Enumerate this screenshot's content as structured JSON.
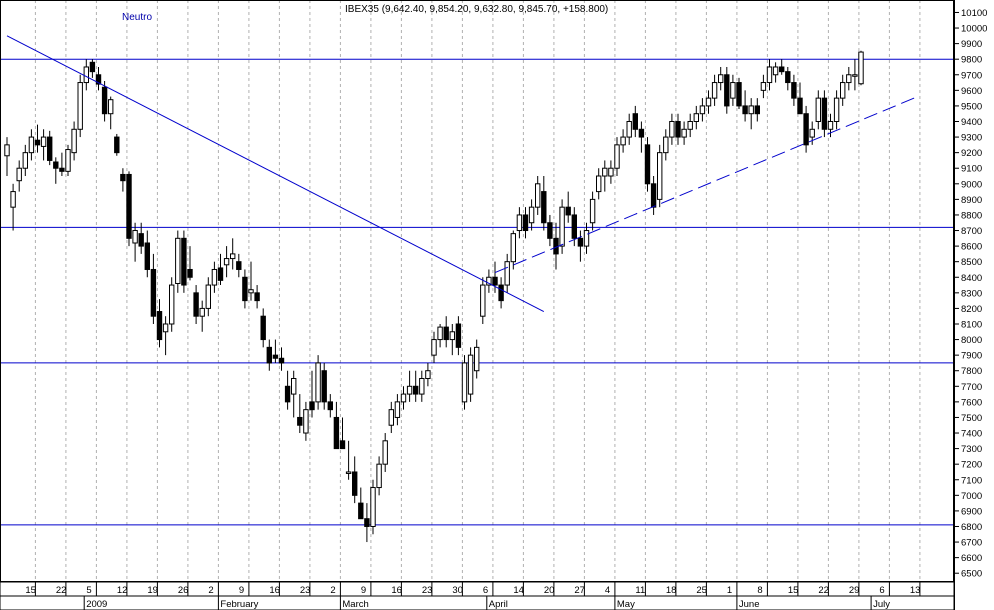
{
  "header": {
    "signal_label": "Neutro",
    "quote_label": "IBEX35 (9,642.40, 9,854.20, 9,632.80, 9,845.70, +158.800)"
  },
  "colors": {
    "background": "#ffffff",
    "frame": "#000000",
    "trendline": "#0000cc",
    "grid": "#b0b0b0",
    "candle": "#000000",
    "signal_text": "#0000aa"
  },
  "chart_data": {
    "type": "candlestick",
    "title": "IBEX35 (9,642.40, 9,854.20, 9,632.80, 9,845.70, +158.800)",
    "ylim": [
      6450,
      10180
    ],
    "y_ticks": [
      6500,
      6600,
      6700,
      6800,
      6900,
      7000,
      7100,
      7200,
      7300,
      7400,
      7500,
      7600,
      7700,
      7800,
      7900,
      8000,
      8100,
      8200,
      8300,
      8400,
      8500,
      8600,
      8700,
      8800,
      8900,
      9000,
      9100,
      9200,
      9300,
      9400,
      9500,
      9600,
      9700,
      9800,
      9900,
      10000,
      10100
    ],
    "x_day_labels": [
      {
        "slot": 4,
        "text": "15"
      },
      {
        "slot": 9,
        "text": "22"
      },
      {
        "slot": 14,
        "text": "5"
      },
      {
        "slot": 19,
        "text": "12"
      },
      {
        "slot": 24,
        "text": "19"
      },
      {
        "slot": 29,
        "text": "26"
      },
      {
        "slot": 34,
        "text": "2"
      },
      {
        "slot": 39,
        "text": "9"
      },
      {
        "slot": 44,
        "text": "16"
      },
      {
        "slot": 49,
        "text": "23"
      },
      {
        "slot": 54,
        "text": "2"
      },
      {
        "slot": 59,
        "text": "9"
      },
      {
        "slot": 64,
        "text": "16"
      },
      {
        "slot": 69,
        "text": "23"
      },
      {
        "slot": 74,
        "text": "30"
      },
      {
        "slot": 79,
        "text": "6"
      },
      {
        "slot": 84,
        "text": "14"
      },
      {
        "slot": 89,
        "text": "20"
      },
      {
        "slot": 94,
        "text": "27"
      },
      {
        "slot": 99,
        "text": "4"
      },
      {
        "slot": 104,
        "text": "11"
      },
      {
        "slot": 109,
        "text": "18"
      },
      {
        "slot": 114,
        "text": "25"
      },
      {
        "slot": 119,
        "text": "1"
      },
      {
        "slot": 124,
        "text": "8"
      },
      {
        "slot": 129,
        "text": "15"
      },
      {
        "slot": 134,
        "text": "22"
      },
      {
        "slot": 139,
        "text": "29"
      },
      {
        "slot": 144,
        "text": "6"
      },
      {
        "slot": 149,
        "text": "13"
      }
    ],
    "x_month_labels": [
      {
        "slot": 12,
        "text": "2009"
      },
      {
        "slot": 34,
        "text": "February"
      },
      {
        "slot": 54,
        "text": "March"
      },
      {
        "slot": 78,
        "text": "April"
      },
      {
        "slot": 99,
        "text": "May"
      },
      {
        "slot": 119,
        "text": "June"
      },
      {
        "slot": 141,
        "text": "July"
      }
    ],
    "candles": [
      [
        9180,
        9300,
        9050,
        9250
      ],
      [
        8850,
        9000,
        8700,
        8950
      ],
      [
        9020,
        9150,
        8950,
        9100
      ],
      [
        9100,
        9250,
        9050,
        9200
      ],
      [
        9200,
        9350,
        9150,
        9300
      ],
      [
        9280,
        9380,
        9200,
        9250
      ],
      [
        9240,
        9350,
        9150,
        9300
      ],
      [
        9300,
        9340,
        9120,
        9150
      ],
      [
        9140,
        9170,
        9000,
        9100
      ],
      [
        9100,
        9200,
        9050,
        9080
      ],
      [
        9080,
        9250,
        9050,
        9220
      ],
      [
        9200,
        9400,
        9150,
        9350
      ],
      [
        9350,
        9700,
        9300,
        9650
      ],
      [
        9650,
        9800,
        9600,
        9750
      ],
      [
        9780,
        9800,
        9680,
        9720
      ],
      [
        9700,
        9750,
        9600,
        9640
      ],
      [
        9620,
        9660,
        9400,
        9450
      ],
      [
        9450,
        9560,
        9350,
        9540
      ],
      [
        9300,
        9320,
        9180,
        9200
      ],
      [
        9060,
        9100,
        8950,
        9020
      ],
      [
        9060,
        9080,
        8600,
        8650
      ],
      [
        8620,
        8750,
        8500,
        8700
      ],
      [
        8680,
        8750,
        8550,
        8600
      ],
      [
        8620,
        8700,
        8400,
        8450
      ],
      [
        8450,
        8550,
        8100,
        8150
      ],
      [
        8180,
        8260,
        7950,
        8000
      ],
      [
        8050,
        8150,
        7900,
        8100
      ],
      [
        8100,
        8400,
        8050,
        8350
      ],
      [
        8360,
        8700,
        8300,
        8650
      ],
      [
        8650,
        8700,
        8300,
        8350
      ],
      [
        8450,
        8600,
        8380,
        8400
      ],
      [
        8300,
        8350,
        8100,
        8150
      ],
      [
        8150,
        8250,
        8050,
        8200
      ],
      [
        8200,
        8400,
        8150,
        8350
      ],
      [
        8350,
        8500,
        8300,
        8450
      ],
      [
        8460,
        8550,
        8350,
        8380
      ],
      [
        8480,
        8600,
        8400,
        8520
      ],
      [
        8520,
        8650,
        8450,
        8550
      ],
      [
        8500,
        8550,
        8400,
        8450
      ],
      [
        8400,
        8450,
        8200,
        8250
      ],
      [
        8300,
        8500,
        8250,
        8320
      ],
      [
        8300,
        8350,
        8200,
        8250
      ],
      [
        8150,
        8200,
        7950,
        8000
      ],
      [
        7950,
        8000,
        7800,
        7850
      ],
      [
        7900,
        8000,
        7850,
        7880
      ],
      [
        7880,
        7950,
        7800,
        7850
      ],
      [
        7700,
        7800,
        7550,
        7600
      ],
      [
        7650,
        7800,
        7500,
        7750
      ],
      [
        7500,
        7650,
        7400,
        7450
      ],
      [
        7400,
        7600,
        7350,
        7550
      ],
      [
        7600,
        7800,
        7500,
        7550
      ],
      [
        7600,
        7900,
        7550,
        7850
      ],
      [
        7800,
        7850,
        7550,
        7600
      ],
      [
        7600,
        7650,
        7500,
        7550
      ],
      [
        7500,
        7600,
        7300,
        7300
      ],
      [
        7350,
        7500,
        7300,
        7300
      ],
      [
        7150,
        7350,
        7100,
        7150
      ],
      [
        7150,
        7250,
        6950,
        7000
      ],
      [
        6950,
        7050,
        6850,
        6850
      ],
      [
        6850,
        6950,
        6700,
        6800
      ],
      [
        6800,
        7100,
        6750,
        7050
      ],
      [
        7050,
        7250,
        7000,
        7200
      ],
      [
        7200,
        7400,
        7150,
        7350
      ],
      [
        7450,
        7600,
        7400,
        7550
      ],
      [
        7500,
        7650,
        7450,
        7600
      ],
      [
        7600,
        7700,
        7550,
        7650
      ],
      [
        7650,
        7800,
        7600,
        7700
      ],
      [
        7700,
        7800,
        7600,
        7650
      ],
      [
        7650,
        7800,
        7600,
        7750
      ],
      [
        7750,
        7850,
        7700,
        7800
      ],
      [
        7900,
        8050,
        7850,
        8000
      ],
      [
        8000,
        8100,
        7950,
        8080
      ],
      [
        8080,
        8150,
        7950,
        8000
      ],
      [
        8000,
        8100,
        7900,
        8050
      ],
      [
        8100,
        8150,
        7900,
        7950
      ],
      [
        7600,
        7900,
        7550,
        7850
      ],
      [
        7650,
        7950,
        7600,
        7900
      ],
      [
        7800,
        8000,
        7750,
        7950
      ],
      [
        8150,
        8400,
        8100,
        8350
      ],
      [
        8350,
        8450,
        8300,
        8400
      ],
      [
        8400,
        8500,
        8300,
        8350
      ],
      [
        8350,
        8400,
        8200,
        8250
      ],
      [
        8350,
        8550,
        8300,
        8500
      ],
      [
        8500,
        8700,
        8450,
        8680
      ],
      [
        8700,
        8850,
        8650,
        8800
      ],
      [
        8800,
        8850,
        8650,
        8700
      ],
      [
        8750,
        8900,
        8700,
        8850
      ],
      [
        8850,
        9050,
        8800,
        9000
      ],
      [
        8950,
        9050,
        8700,
        8750
      ],
      [
        8750,
        8800,
        8600,
        8650
      ],
      [
        8650,
        8750,
        8450,
        8550
      ],
      [
        8600,
        8900,
        8550,
        8850
      ],
      [
        8850,
        8950,
        8750,
        8800
      ],
      [
        8800,
        8850,
        8600,
        8650
      ],
      [
        8650,
        8700,
        8500,
        8600
      ],
      [
        8600,
        8750,
        8550,
        8700
      ],
      [
        8750,
        8950,
        8700,
        8900
      ],
      [
        8950,
        9100,
        8900,
        9050
      ],
      [
        9050,
        9150,
        8950,
        9100
      ],
      [
        9050,
        9150,
        9000,
        9100
      ],
      [
        9100,
        9300,
        9050,
        9250
      ],
      [
        9250,
        9350,
        9200,
        9300
      ],
      [
        9300,
        9450,
        9250,
        9400
      ],
      [
        9450,
        9500,
        9300,
        9350
      ],
      [
        9350,
        9400,
        9200,
        9300
      ],
      [
        9250,
        9300,
        8950,
        9000
      ],
      [
        9000,
        9050,
        8800,
        8850
      ],
      [
        8900,
        9250,
        8850,
        9200
      ],
      [
        9200,
        9350,
        9150,
        9300
      ],
      [
        9300,
        9450,
        9250,
        9400
      ],
      [
        9400,
        9450,
        9250,
        9300
      ],
      [
        9300,
        9400,
        9250,
        9350
      ],
      [
        9350,
        9450,
        9300,
        9400
      ],
      [
        9400,
        9500,
        9350,
        9450
      ],
      [
        9450,
        9550,
        9400,
        9500
      ],
      [
        9500,
        9600,
        9450,
        9550
      ],
      [
        9550,
        9700,
        9500,
        9650
      ],
      [
        9650,
        9750,
        9600,
        9700
      ],
      [
        9700,
        9750,
        9450,
        9500
      ],
      [
        9550,
        9700,
        9500,
        9650
      ],
      [
        9650,
        9680,
        9480,
        9500
      ],
      [
        9500,
        9600,
        9400,
        9450
      ],
      [
        9450,
        9550,
        9350,
        9500
      ],
      [
        9500,
        9550,
        9400,
        9450
      ],
      [
        9600,
        9700,
        9550,
        9650
      ],
      [
        9650,
        9800,
        9600,
        9750
      ],
      [
        9700,
        9780,
        9650,
        9750
      ],
      [
        9750,
        9800,
        9700,
        9720
      ],
      [
        9720,
        9750,
        9600,
        9650
      ],
      [
        9650,
        9700,
        9500,
        9550
      ],
      [
        9550,
        9650,
        9450,
        9450
      ],
      [
        9450,
        9500,
        9200,
        9250
      ],
      [
        9300,
        9400,
        9250,
        9350
      ],
      [
        9400,
        9600,
        9350,
        9550
      ],
      [
        9550,
        9600,
        9300,
        9350
      ],
      [
        9350,
        9450,
        9300,
        9400
      ],
      [
        9400,
        9600,
        9350,
        9550
      ],
      [
        9550,
        9700,
        9500,
        9650
      ],
      [
        9650,
        9750,
        9600,
        9700
      ],
      [
        9700,
        9800,
        9600,
        9700
      ],
      [
        9642.4,
        9854.2,
        9632.8,
        9845.7
      ]
    ],
    "horizontal_lines": [
      9800,
      8720,
      7850,
      6810
    ],
    "trendlines": [
      {
        "from": [
          0,
          9950
        ],
        "to": [
          88,
          8180
        ],
        "style": "solid"
      },
      {
        "from": [
          80,
          8430
        ],
        "to": [
          149,
          9555
        ],
        "style": "dashed"
      }
    ],
    "grid": "vertical-dashed",
    "legend": "none"
  }
}
